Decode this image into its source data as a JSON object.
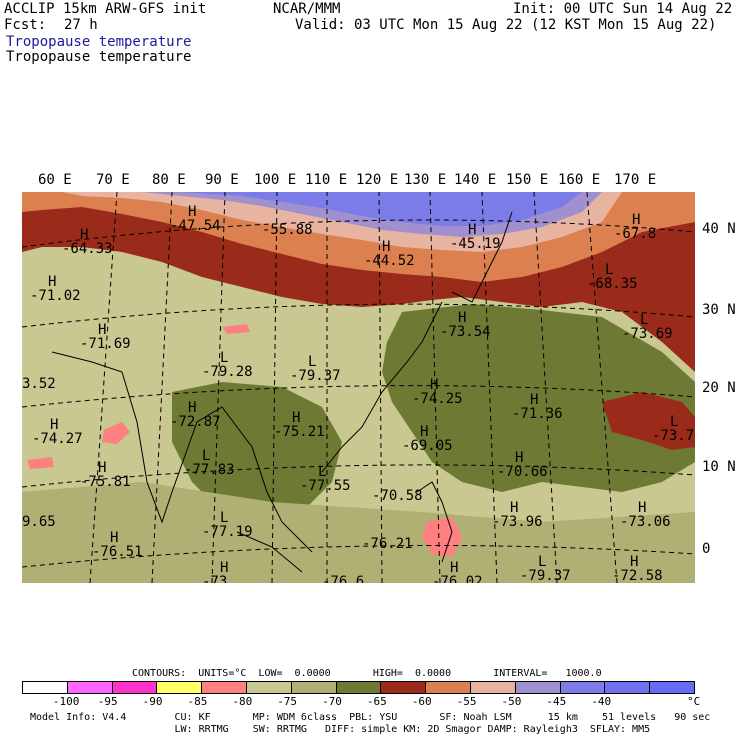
{
  "header": {
    "model": "ACCLIP 15km ARW-GFS init",
    "center": "NCAR/MMM",
    "init": "Init: 00 UTC Sun 14 Aug 22",
    "fcst_label": "Fcst:",
    "fcst_value": "27 h",
    "valid": "Valid: 03 UTC Mon 15 Aug 22 (12 KST Mon 15 Aug 22)",
    "field_title_1": "Tropopause temperature",
    "field_title_2": "Tropopause temperature"
  },
  "lon_labels": [
    "60 E",
    "70 E",
    "80 E",
    "90 E",
    "100 E",
    "110 E",
    "120 E",
    "130 E",
    "140 E",
    "150 E",
    "160 E",
    "170 E"
  ],
  "lat_labels": [
    "40 N",
    "30 N",
    "20 N",
    "10 N",
    "0"
  ],
  "map_labels": [
    {
      "type": "H",
      "value": "-47.54"
    },
    {
      "type": "",
      "value": "-55.88"
    },
    {
      "type": "H",
      "value": "-64.33"
    },
    {
      "type": "H",
      "value": "-44.52"
    },
    {
      "type": "H",
      "value": "-45.19"
    },
    {
      "type": "H",
      "value": "-67.8"
    },
    {
      "type": "H",
      "value": "-71.02"
    },
    {
      "type": "L",
      "value": "-68.35"
    },
    {
      "type": "H",
      "value": "-71.69"
    },
    {
      "type": "L",
      "value": "-79.28"
    },
    {
      "type": "L",
      "value": "-79.37"
    },
    {
      "type": "H",
      "value": "-73.54"
    },
    {
      "type": "L",
      "value": "-73.69"
    },
    {
      "type": "",
      "value": "3.52"
    },
    {
      "type": "H",
      "value": "-74.25"
    },
    {
      "type": "H",
      "value": "-71.36"
    },
    {
      "type": "H",
      "value": "-74.27"
    },
    {
      "type": "H",
      "value": "-72.87"
    },
    {
      "type": "H",
      "value": "-75.21"
    },
    {
      "type": "H",
      "value": "-69.05"
    },
    {
      "type": "L",
      "value": "-73.7"
    },
    {
      "type": "H",
      "value": "-75.81"
    },
    {
      "type": "L",
      "value": "-77.83"
    },
    {
      "type": "L",
      "value": "-77.55"
    },
    {
      "type": "H",
      "value": "-70.66"
    },
    {
      "type": "",
      "value": "-70.58"
    },
    {
      "type": "",
      "value": "9.65"
    },
    {
      "type": "L",
      "value": "-77.19"
    },
    {
      "type": "H",
      "value": "-73.96"
    },
    {
      "type": "H",
      "value": "-73.06"
    },
    {
      "type": "H",
      "value": "-76.51"
    },
    {
      "type": "",
      "value": "-76.21"
    },
    {
      "type": "L",
      "value": "-79.37"
    },
    {
      "type": "H",
      "value": "-72.58"
    },
    {
      "type": "H",
      "value": "-73"
    },
    {
      "type": "",
      "value": "-76.6"
    },
    {
      "type": "H",
      "value": "-76.02"
    }
  ],
  "contour_info": "CONTOURS:  UNITS=°C  LOW=  0.0000       HIGH=  0.0000       INTERVAL=   1000.0",
  "legend": {
    "colors": [
      "#ffffff",
      "#ff66ff",
      "#ff33cc",
      "#ffff66",
      "#ff8080",
      "#c8c890",
      "#b0b074",
      "#6e7a34",
      "#9a2a1a",
      "#dc8050",
      "#e6b4a0",
      "#a090d0",
      "#7c7ce8",
      "#7070f0",
      "#6a6af8"
    ],
    "ticks": [
      "-100",
      "-95",
      "-90",
      "-85",
      "-80",
      "-75",
      "-70",
      "-65",
      "-60",
      "-55",
      "-50",
      "-45",
      "-40",
      "°C"
    ]
  },
  "model_info": {
    "line1": "Model Info: V4.4        CU: KF       MP: WDM 6class  PBL: YSU       SF: Noah LSM      15 km    51 levels   90 sec",
    "line2": "                        LW: RRTMG    SW: RRTMG   DIFF: simple KM: 2D Smagor DAMP: Rayleigh3  SFLAY: MM5"
  }
}
